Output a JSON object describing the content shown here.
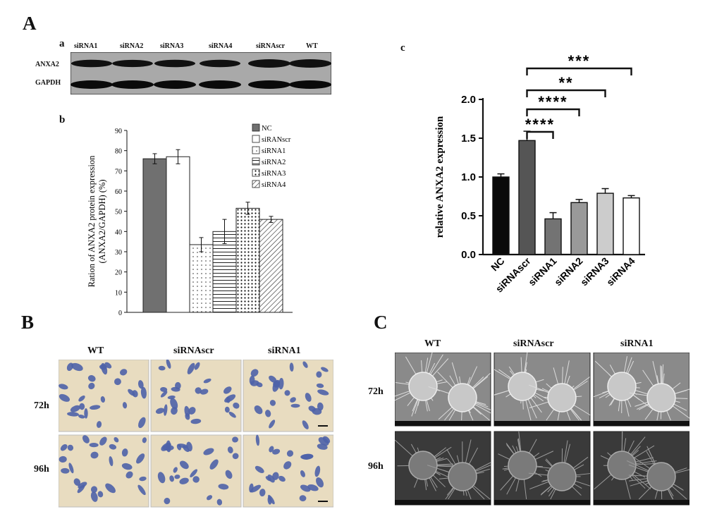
{
  "panels": {
    "A": "A",
    "B": "B",
    "C": "C",
    "a": "a",
    "b": "b",
    "c": "c"
  },
  "western_blot": {
    "lanes": [
      "siRNA1",
      "siRNA2",
      "siRNA3",
      "siRNA4",
      "siRNAscr",
      "WT"
    ],
    "rows": [
      "ANXA2",
      "GAPDH"
    ],
    "anxa2_band_intensity": [
      0.75,
      0.7,
      0.75,
      0.75,
      1.0,
      1.0
    ],
    "gapdh_band_intensity": [
      1.0,
      1.0,
      1.0,
      1.0,
      1.0,
      1.0
    ]
  },
  "microscopy_B": {
    "columns": [
      "WT",
      "siRNAscr",
      "siRNA1"
    ],
    "rows": [
      "72h",
      "96h"
    ],
    "bg": "#e8dcc0",
    "cell": "#4e62a8"
  },
  "microscopy_C": {
    "columns": [
      "WT",
      "siRNAscr",
      "siRNA1"
    ],
    "rows": [
      "72h",
      "96h"
    ]
  },
  "chart_data": [
    {
      "type": "bar",
      "ylabel": "Ration of ANXA2 protein expression (ANXA2/GAPDH) (%)",
      "ylim": [
        0,
        90
      ],
      "yticks": [
        "0",
        "10",
        "20",
        "30",
        "40",
        "50",
        "60",
        "70",
        "80",
        "90"
      ],
      "categories": [
        "NC",
        "siRANscr",
        "siRNA1",
        "siRNA2",
        "siRNA3",
        "siRNA4"
      ],
      "values": [
        76,
        77,
        33.5,
        40,
        51.5,
        46
      ],
      "errors": [
        2.5,
        3.5,
        3.5,
        6,
        3,
        1.5
      ],
      "legend": [
        "NC",
        "siRANscr",
        "siRNA1",
        "siRNA2",
        "siRNA3",
        "siRNA4"
      ],
      "legend_position": "top-right",
      "patterns": [
        "solid-gray",
        "white",
        "dots-sparse",
        "horizontal-lines",
        "dots-dense",
        "diagonal"
      ]
    },
    {
      "type": "bar",
      "ylabel": "relative ANXA2 expression",
      "ylim": [
        0,
        2.0
      ],
      "yticks": [
        "0.0",
        "0.5",
        "1.0",
        "1.5",
        "2.0"
      ],
      "categories": [
        "NC",
        "siRNAscr",
        "siRNA1",
        "siRNA2",
        "siRNA3",
        "siRNA4"
      ],
      "values": [
        1.0,
        1.47,
        0.46,
        0.67,
        0.79,
        0.73
      ],
      "errors": [
        0.04,
        0.12,
        0.08,
        0.04,
        0.06,
        0.03
      ],
      "colors": [
        "#0a0a0a",
        "#555555",
        "#737373",
        "#999999",
        "#cccccc",
        "#ffffff"
      ],
      "significance": [
        {
          "from": "siRNAscr",
          "to": "siRNA1",
          "label": "****"
        },
        {
          "from": "siRNAscr",
          "to": "siRNA2",
          "label": "****"
        },
        {
          "from": "siRNAscr",
          "to": "siRNA3",
          "label": "**"
        },
        {
          "from": "siRNAscr",
          "to": "siRNA4",
          "label": "***"
        }
      ]
    }
  ]
}
